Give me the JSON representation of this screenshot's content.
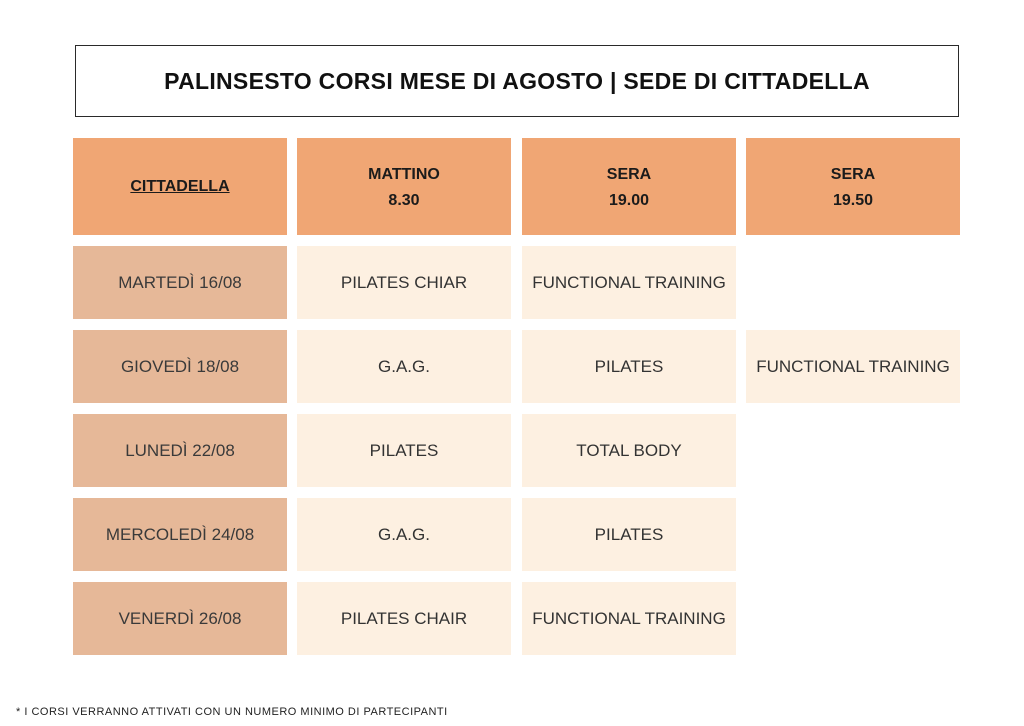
{
  "title": "PALINSESTO CORSI MESE DI AGOSTO | SEDE DI CITTADELLA",
  "header": {
    "corner": "CITTADELLA",
    "columns": [
      {
        "line1": "MATTINO",
        "line2": "8.30"
      },
      {
        "line1": "SERA",
        "line2": "19.00"
      },
      {
        "line1": "SERA",
        "line2": "19.50"
      }
    ]
  },
  "rows": [
    {
      "day": "MARTEDÌ 16/08",
      "slots": [
        "PILATES CHIAR",
        "FUNCTIONAL TRAINING",
        ""
      ]
    },
    {
      "day": "GIOVEDÌ 18/08",
      "slots": [
        "G.A.G.",
        "PILATES",
        "FUNCTIONAL TRAINING"
      ]
    },
    {
      "day": "LUNEDÌ 22/08",
      "slots": [
        "PILATES",
        "TOTAL BODY",
        ""
      ]
    },
    {
      "day": "MERCOLEDÌ 24/08",
      "slots": [
        "G.A.G.",
        "PILATES",
        ""
      ]
    },
    {
      "day": "VENERDÌ 26/08",
      "slots": [
        "PILATES CHAIR",
        "FUNCTIONAL TRAINING",
        ""
      ]
    }
  ],
  "footnote": "* I CORSI VERRANNO ATTIVATI CON UN NUMERO MINIMO DI PARTECIPANTI",
  "colors": {
    "header_bg": "#f0a674",
    "day_bg": "#e6b898",
    "slot_bg": "#fdf0e1"
  }
}
